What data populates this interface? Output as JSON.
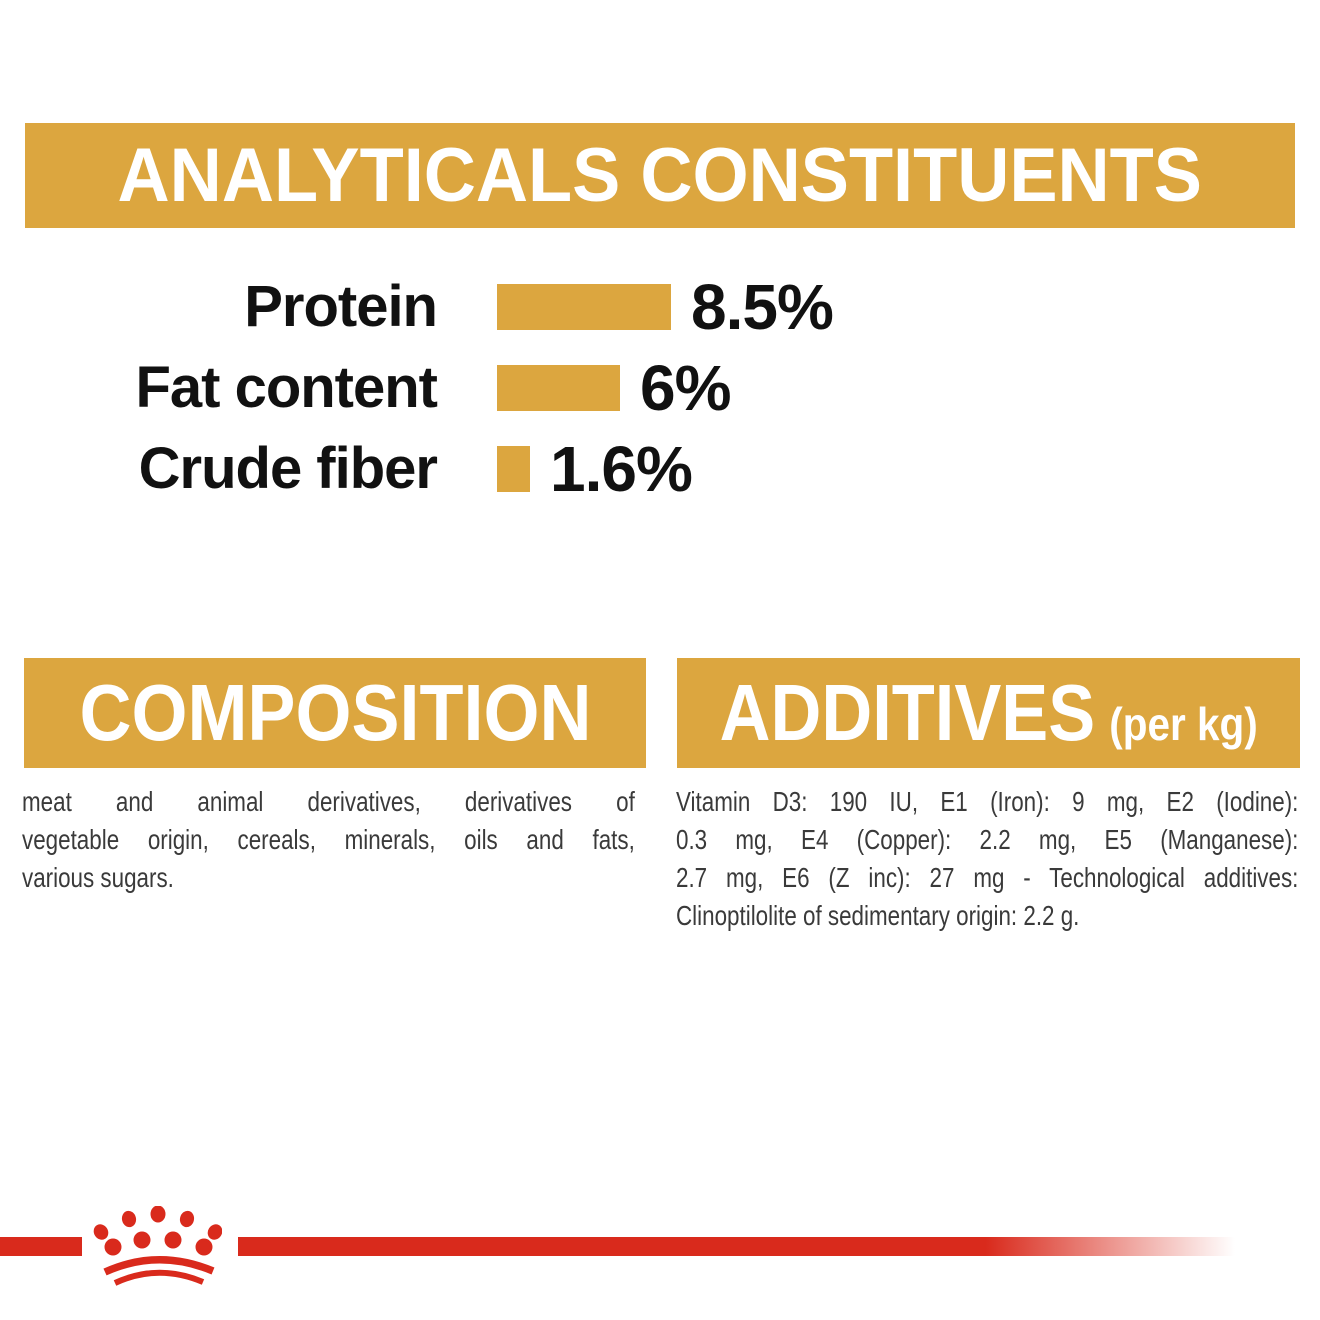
{
  "colors": {
    "gold": "#DCA63F",
    "red": "#D92A1C",
    "heading_text": "#FFFFFF",
    "label_text": "#111111",
    "body_text": "#3A3A3A",
    "background": "#FFFFFF"
  },
  "header": {
    "title": "ANALYTICALS CONSTITUENTS"
  },
  "chart_data": {
    "type": "bar",
    "orientation": "horizontal",
    "categories": [
      "Protein",
      "Fat content",
      "Crude fiber"
    ],
    "values": [
      8.5,
      6,
      1.6
    ],
    "value_labels": [
      "8.5%",
      "6%",
      "1.6%"
    ],
    "unit": "%",
    "bar_color": "#DCA63F",
    "xlim": [
      0,
      10
    ],
    "grid": false,
    "legend": false,
    "title": "ANALYTICALS CONSTITUENTS"
  },
  "composition": {
    "title": "COMPOSITION",
    "lines": [
      "meat and animal derivatives, derivatives of",
      "vegetable origin, cereals, minerals, oils and fats,",
      "various sugars."
    ]
  },
  "additives": {
    "title": "ADDITIVES",
    "subtitle": "(per kg)",
    "lines": [
      "Vitamin D3: 190 IU, E1 (Iron): 9 mg, E2 (Iodine):",
      "0.3 mg, E4 (Copper): 2.2 mg, E5 (Manganese):",
      "2.7 mg, E6 (Z inc): 27 mg - Technological additives:",
      "Clinoptilolite of sedimentary origin: 2.2 g."
    ]
  },
  "footer": {
    "logo": "royal-canin-crown-icon"
  }
}
